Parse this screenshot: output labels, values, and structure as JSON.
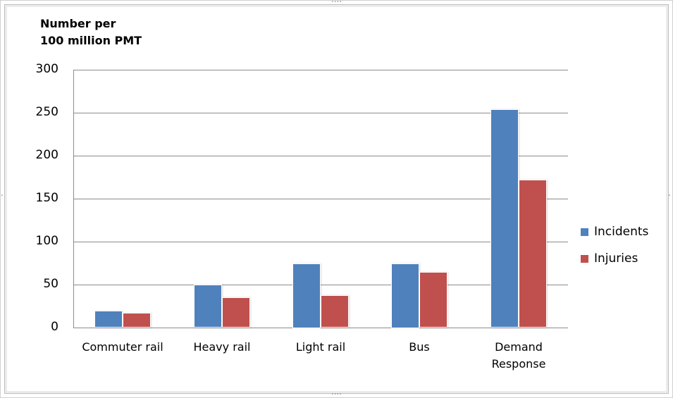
{
  "chart_data": {
    "type": "bar",
    "title": "",
    "ylabel": "Number per 100 million PMT",
    "ylabel_lines": [
      "Number per",
      "100 million PMT"
    ],
    "xlabel": "",
    "categories": [
      "Commuter rail",
      "Heavy rail",
      "Light rail",
      "Bus",
      "Demand Response"
    ],
    "category_lines": [
      [
        "Commuter rail"
      ],
      [
        "Heavy rail"
      ],
      [
        "Light rail"
      ],
      [
        "Bus"
      ],
      [
        "Demand",
        "Response"
      ]
    ],
    "series": [
      {
        "name": "Incidents",
        "color": "#4f81bd",
        "values": [
          20,
          50,
          75,
          75,
          254
        ]
      },
      {
        "name": "Injuries",
        "color": "#c0504d",
        "values": [
          17,
          35,
          38,
          65,
          172
        ]
      }
    ],
    "ylim": [
      0,
      300
    ],
    "yticks": [
      0,
      50,
      100,
      150,
      200,
      250,
      300
    ],
    "grid": true,
    "legend_position": "right"
  }
}
